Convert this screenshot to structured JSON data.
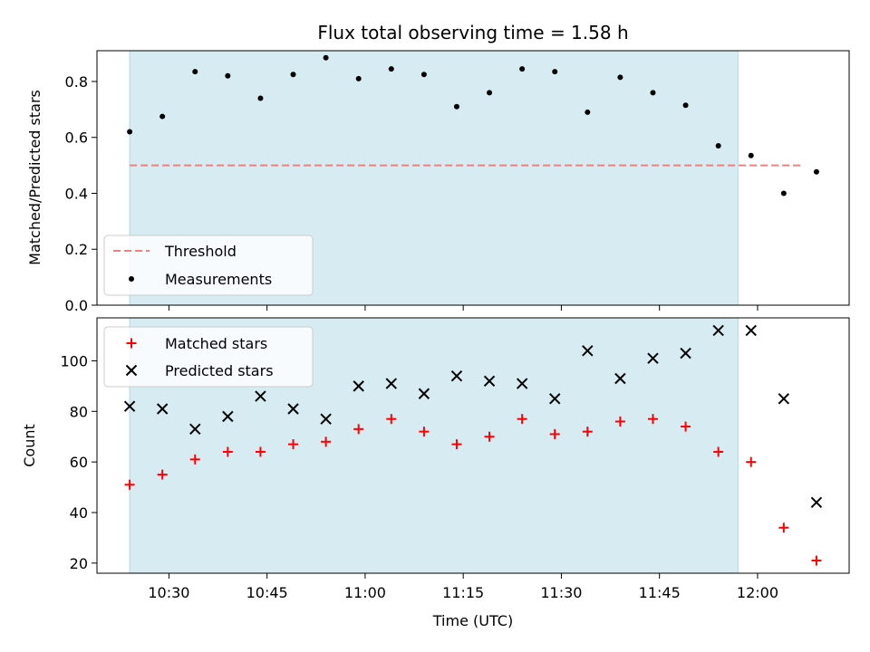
{
  "chart_data": [
    {
      "type": "scatter",
      "title": "Flux total observing time = 1.58 h",
      "ylabel": "Matched/Predicted stars",
      "xlabel": "",
      "ylim": [
        0,
        0.91
      ],
      "yticks": [
        "0.0",
        "0.2",
        "0.4",
        "0.6",
        "0.8"
      ],
      "x_is_time_utc": true,
      "shaded_interval": {
        "start": "10:24",
        "end": "11:57",
        "color": "#add8e6"
      },
      "threshold": {
        "name": "Threshold",
        "value": 0.5,
        "x_start": "10:24",
        "x_end": "12:07",
        "color": "#f08080",
        "style": "dashed"
      },
      "series": [
        {
          "name": "Measurements",
          "marker": "dot",
          "color": "#000000",
          "x": [
            "10:24",
            "10:29",
            "10:34",
            "10:39",
            "10:44",
            "10:49",
            "10:54",
            "10:59",
            "11:04",
            "11:09",
            "11:14",
            "11:19",
            "11:24",
            "11:29",
            "11:34",
            "11:39",
            "11:44",
            "11:49",
            "11:54",
            "11:59",
            "12:04",
            "12:09"
          ],
          "y": [
            0.62,
            0.675,
            0.835,
            0.82,
            0.74,
            0.825,
            0.885,
            0.81,
            0.845,
            0.825,
            0.71,
            0.76,
            0.845,
            0.835,
            0.69,
            0.815,
            0.76,
            0.715,
            0.57,
            0.535,
            0.4,
            0.477
          ]
        }
      ],
      "legend": {
        "placement": "lower left",
        "entries": [
          "Threshold",
          "Measurements"
        ]
      }
    },
    {
      "type": "scatter",
      "title": "",
      "ylabel": "Count",
      "xlabel": "Time (UTC)",
      "ylim": [
        16,
        117
      ],
      "yticks": [
        "20",
        "40",
        "60",
        "80",
        "100"
      ],
      "xticks": [
        "10:30",
        "10:45",
        "11:00",
        "11:15",
        "11:30",
        "11:45",
        "12:00"
      ],
      "xlim": [
        "10:19",
        "12:14"
      ],
      "shaded_interval": {
        "start": "10:24",
        "end": "11:57",
        "color": "#add8e6"
      },
      "series": [
        {
          "name": "Matched stars",
          "marker": "plus",
          "color": "#ff0000",
          "x": [
            "10:24",
            "10:29",
            "10:34",
            "10:39",
            "10:44",
            "10:49",
            "10:54",
            "10:59",
            "11:04",
            "11:09",
            "11:14",
            "11:19",
            "11:24",
            "11:29",
            "11:34",
            "11:39",
            "11:44",
            "11:49",
            "11:54",
            "11:59",
            "12:04",
            "12:09"
          ],
          "y": [
            51,
            55,
            61,
            64,
            64,
            67,
            68,
            73,
            77,
            72,
            67,
            70,
            77,
            71,
            72,
            76,
            77,
            74,
            64,
            60,
            34,
            21
          ]
        },
        {
          "name": "Predicted stars",
          "marker": "x",
          "color": "#000000",
          "x": [
            "10:24",
            "10:29",
            "10:34",
            "10:39",
            "10:44",
            "10:49",
            "10:54",
            "10:59",
            "11:04",
            "11:09",
            "11:14",
            "11:19",
            "11:24",
            "11:29",
            "11:34",
            "11:39",
            "11:44",
            "11:49",
            "11:54",
            "11:59",
            "12:04",
            "12:09"
          ],
          "y": [
            82,
            81,
            73,
            78,
            86,
            81,
            77,
            90,
            91,
            87,
            94,
            92,
            91,
            85,
            104,
            93,
            101,
            103,
            112,
            112,
            85,
            44
          ]
        }
      ],
      "legend": {
        "placement": "upper left",
        "entries": [
          "Matched stars",
          "Predicted stars"
        ]
      }
    }
  ]
}
